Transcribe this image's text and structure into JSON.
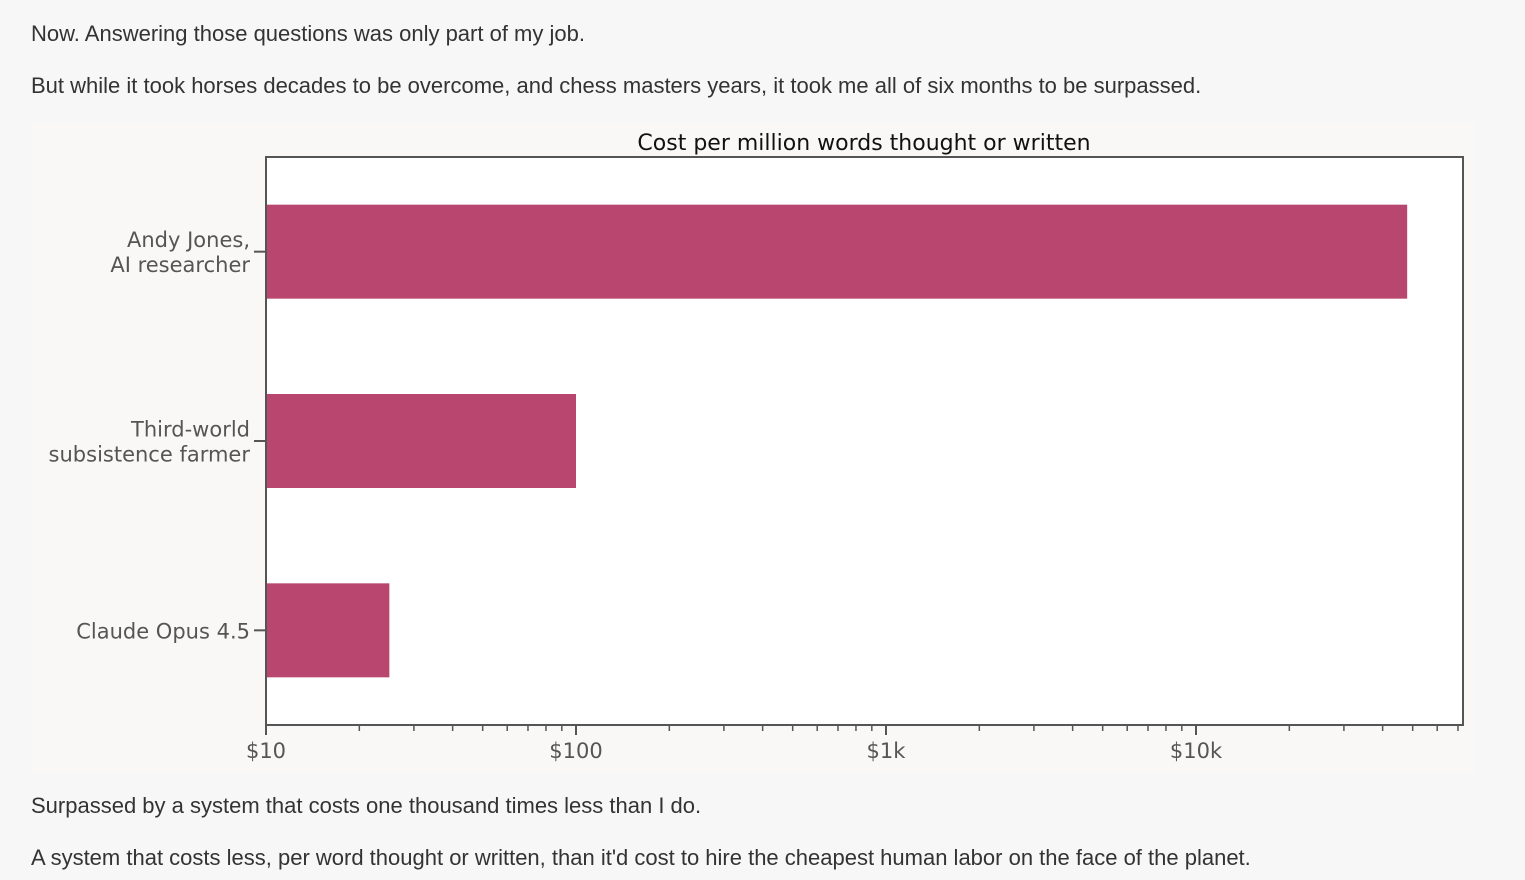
{
  "article": {
    "para_1": "Now. Answering those questions was only part of my job.",
    "para_2": "But while it took horses decades to be overcome, and chess masters years, it took me all of six months to be surpassed.",
    "para_3": "Surpassed by a system that costs one thousand times less than I do.",
    "para_4": "A system that costs less, per word thought or written, than it'd cost to hire the cheapest human labor on the face of the planet."
  },
  "chart_data": {
    "type": "bar",
    "orientation": "horizontal",
    "title": "Cost per million words thought or written",
    "xlabel": "",
    "ylabel": "",
    "x_scale": "log",
    "xlim": [
      10,
      70000
    ],
    "x_tick_values": [
      10,
      100,
      1000,
      10000
    ],
    "x_tick_labels": [
      "$10",
      "$100",
      "$1k",
      "$10k"
    ],
    "categories": [
      [
        "Andy Jones,",
        "AI researcher"
      ],
      [
        "Third-world",
        "subsistence farmer"
      ],
      [
        "Claude Opus 4.5"
      ]
    ],
    "values": [
      48000,
      100,
      25
    ],
    "grid": false,
    "colors": {
      "bar": "#b8466e",
      "axis": "#555555",
      "label_text": "#555555",
      "title_text": "#111111",
      "plot_bg": "#ffffff",
      "figure_bg": "#f9f8f6"
    }
  }
}
